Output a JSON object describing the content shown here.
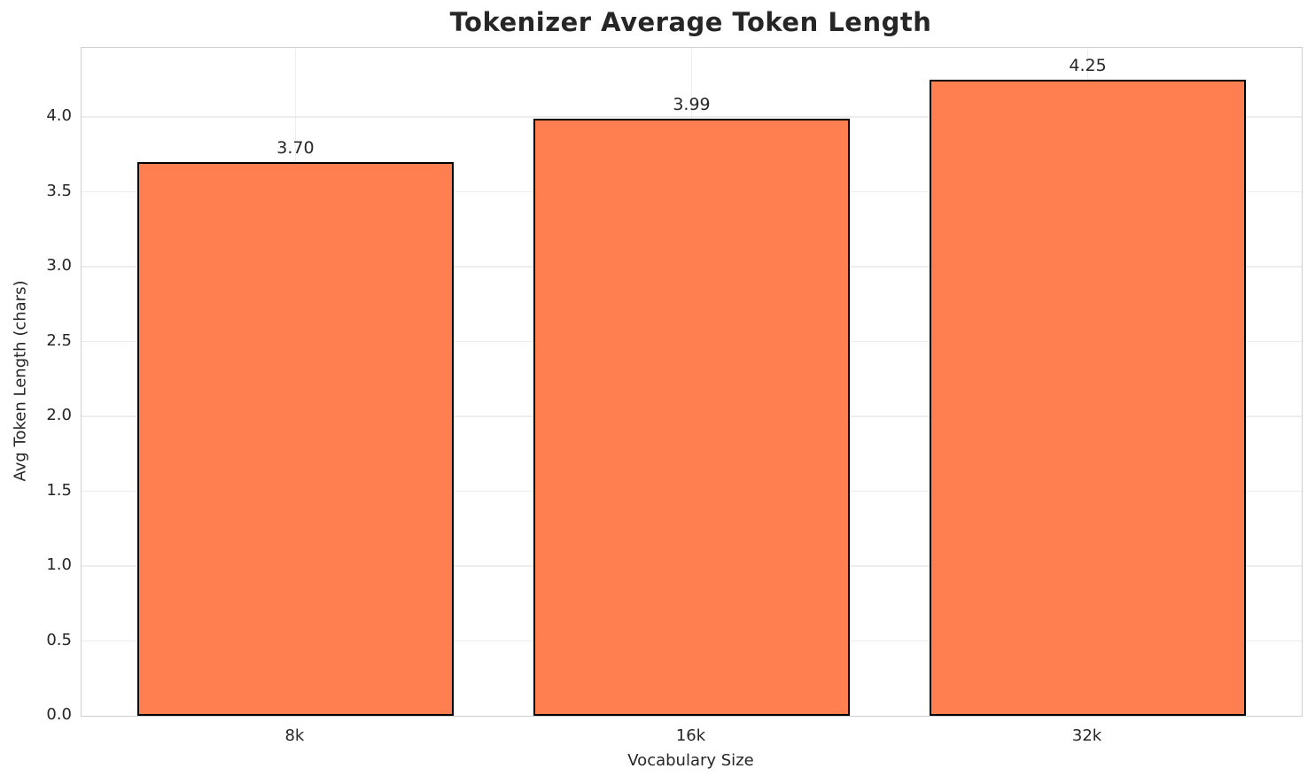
{
  "chart_data": {
    "type": "bar",
    "title": "Tokenizer Average Token Length",
    "xlabel": "Vocabulary Size",
    "ylabel": "Avg Token Length (chars)",
    "categories": [
      "8k",
      "16k",
      "32k"
    ],
    "values": [
      3.7,
      3.99,
      4.25
    ],
    "value_labels": [
      "3.70",
      "3.99",
      "4.25"
    ],
    "ytick_values": [
      0.0,
      0.5,
      1.0,
      1.5,
      2.0,
      2.5,
      3.0,
      3.5,
      4.0
    ],
    "ytick_labels": [
      "0.0",
      "0.5",
      "1.0",
      "1.5",
      "2.0",
      "2.5",
      "3.0",
      "3.5",
      "4.0"
    ],
    "ylim": [
      0,
      4.4625
    ],
    "xlim": [
      -0.54,
      2.54
    ],
    "bar_width": 0.8,
    "grid": true,
    "legend": "none",
    "colors": {
      "bar_fill": "#FF7F50",
      "bar_edge": "#000000",
      "grid_line": "#ECECEC",
      "frame_border": "#CFCFCF",
      "text": "#262626",
      "background": "#FFFFFF"
    }
  }
}
